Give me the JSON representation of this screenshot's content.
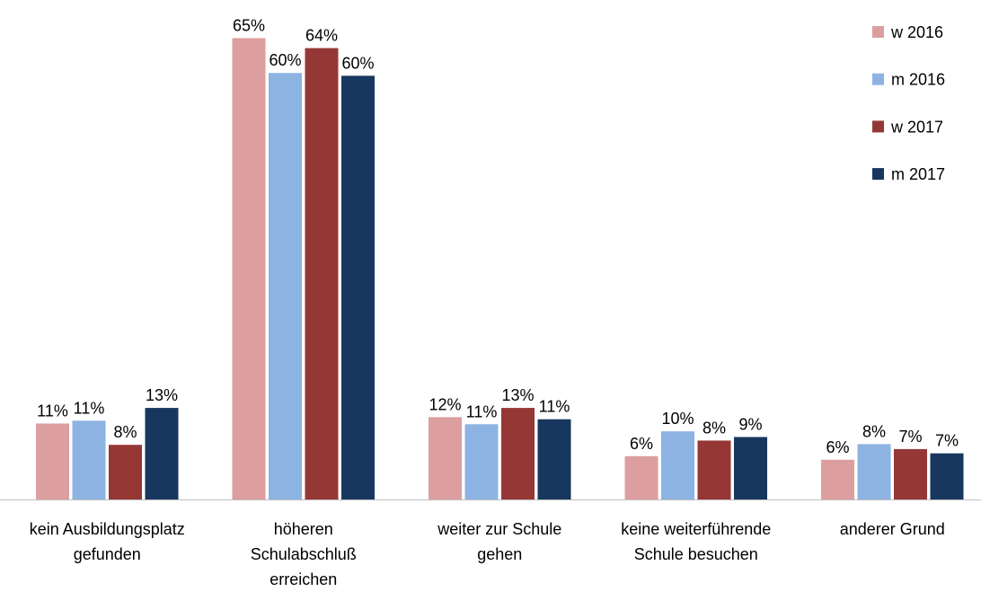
{
  "chart_data": {
    "type": "bar",
    "categories": [
      "kein Ausbildungsplatz\ngefunden",
      "höheren\nSchulabschluß\nerreichen",
      "weiter zur Schule\ngehen",
      "keine weiterführende\nSchule besuchen",
      "anderer Grund"
    ],
    "series": [
      {
        "name": "w 2016",
        "color": "#dc9e9e",
        "values": [
          10.7,
          65,
          11.6,
          6.1,
          5.6
        ],
        "value_labels": [
          "11%",
          "65%",
          "12%",
          "6%",
          "6%"
        ]
      },
      {
        "name": "m 2016",
        "color": "#8db3e2",
        "values": [
          11.1,
          60.1,
          10.6,
          9.6,
          7.8
        ],
        "value_labels": [
          "11%",
          "60%",
          "11%",
          "10%",
          "8%"
        ]
      },
      {
        "name": "w 2017",
        "color": "#953735",
        "values": [
          7.7,
          63.6,
          12.9,
          8.3,
          7.1
        ],
        "value_labels": [
          "8%",
          "64%",
          "13%",
          "8%",
          "7%"
        ]
      },
      {
        "name": "m 2017",
        "color": "#17375e",
        "values": [
          12.9,
          59.7,
          11.3,
          8.8,
          6.5
        ],
        "value_labels": [
          "13%",
          "60%",
          "11%",
          "9%",
          "7%"
        ]
      }
    ],
    "ylim": [
      0,
      70
    ],
    "legend": "top-right"
  }
}
